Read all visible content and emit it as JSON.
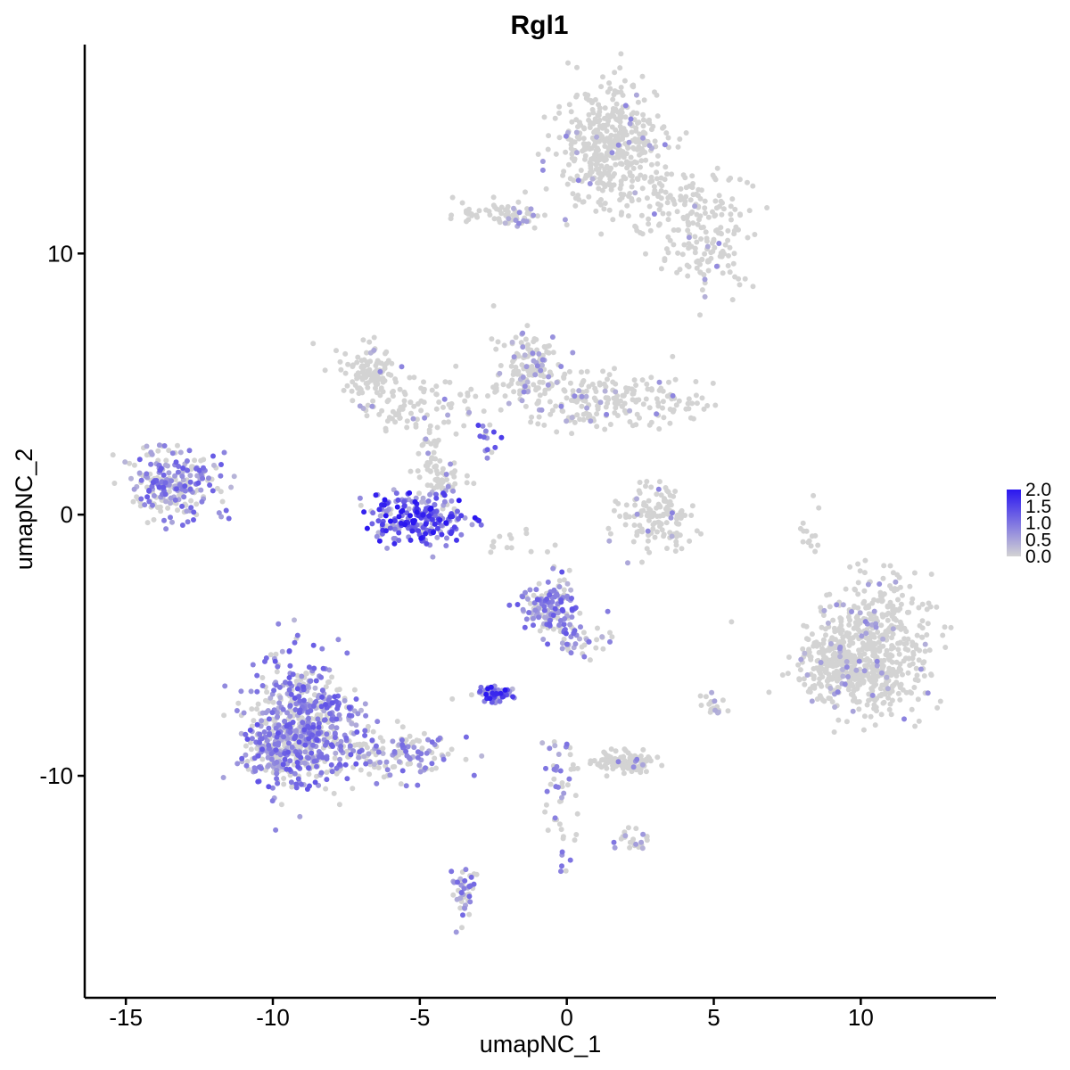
{
  "chart_data": {
    "type": "scatter",
    "title": "Rgl1",
    "xlabel": "umapNC_1",
    "ylabel": "umapNC_2",
    "xlim": [
      -16.4,
      14.6
    ],
    "ylim": [
      -18.5,
      18.0
    ],
    "x_ticks": [
      -15,
      -10,
      -5,
      0,
      5,
      10
    ],
    "x_tick_labels": [
      "-15",
      "-10",
      "-5",
      "0",
      "5",
      "10"
    ],
    "y_ticks": [
      -10,
      0,
      10
    ],
    "y_tick_labels": [
      "-10",
      "0",
      "10"
    ],
    "grid": false,
    "legend_position": "right",
    "color_scale": {
      "low": "#d3d3d3",
      "high": "#2a16f0",
      "min": 0.0,
      "max": 2.0,
      "breaks": [
        0.0,
        0.5,
        1.0,
        1.5,
        2.0
      ],
      "break_labels": [
        "0.0",
        "0.5",
        "1.0",
        "1.5",
        "2.0"
      ]
    },
    "clusters": [
      {
        "cx": 1.5,
        "cy": 14.2,
        "sx": 0.95,
        "sy": 1.1,
        "n": 420,
        "expr": 0.02
      },
      {
        "cx": 3.4,
        "cy": 12.0,
        "sx": 1.3,
        "sy": 0.6,
        "n": 120,
        "expr": 0.02
      },
      {
        "cx": 4.8,
        "cy": 10.3,
        "sx": 0.8,
        "sy": 0.8,
        "n": 110,
        "expr": 0.02
      },
      {
        "cx": -2.2,
        "cy": 11.5,
        "sx": 0.8,
        "sy": 0.3,
        "n": 70,
        "expr": 0.06
      },
      {
        "cx": -6.6,
        "cy": 5.5,
        "sx": 0.6,
        "sy": 0.5,
        "n": 110,
        "expr": 0.03
      },
      {
        "cx": -5.0,
        "cy": 4.2,
        "sx": 1.2,
        "sy": 0.5,
        "n": 90,
        "expr": 0.05
      },
      {
        "cx": -1.3,
        "cy": 5.5,
        "sx": 0.6,
        "sy": 0.7,
        "n": 150,
        "expr": 0.12
      },
      {
        "cx": 1.5,
        "cy": 4.4,
        "sx": 1.5,
        "sy": 0.5,
        "n": 200,
        "expr": 0.06
      },
      {
        "cx": -5.1,
        "cy": -0.1,
        "sx": 0.85,
        "sy": 0.5,
        "n": 230,
        "expr": 0.75
      },
      {
        "cx": -4.2,
        "cy": 1.2,
        "sx": 0.4,
        "sy": 0.5,
        "n": 55,
        "expr": 0.1
      },
      {
        "cx": -4.7,
        "cy": 2.5,
        "sx": 0.2,
        "sy": 0.8,
        "n": 30,
        "expr": 0.05
      },
      {
        "cx": -13.4,
        "cy": 1.1,
        "sx": 0.7,
        "sy": 0.6,
        "n": 260,
        "expr": 0.42
      },
      {
        "cx": 3.1,
        "cy": -0.3,
        "sx": 0.6,
        "sy": 0.6,
        "n": 120,
        "expr": 0.04
      },
      {
        "cx": 10.4,
        "cy": -5.1,
        "sx": 1.0,
        "sy": 1.3,
        "n": 520,
        "expr": 0.05
      },
      {
        "cx": 9.2,
        "cy": -5.9,
        "sx": 0.7,
        "sy": 0.6,
        "n": 200,
        "expr": 0.05
      },
      {
        "cx": -0.6,
        "cy": -3.5,
        "sx": 0.5,
        "sy": 0.55,
        "n": 160,
        "expr": 0.45
      },
      {
        "cx": 0.6,
        "cy": -4.8,
        "sx": 0.5,
        "sy": 0.4,
        "n": 40,
        "expr": 0.35
      },
      {
        "cx": -2.4,
        "cy": -6.9,
        "sx": 0.3,
        "sy": 0.18,
        "n": 55,
        "expr": 0.75
      },
      {
        "cx": -8.9,
        "cy": -8.0,
        "sx": 0.9,
        "sy": 1.2,
        "n": 560,
        "expr": 0.45
      },
      {
        "cx": -9.8,
        "cy": -9.1,
        "sx": 0.6,
        "sy": 0.5,
        "n": 150,
        "expr": 0.45
      },
      {
        "cx": -6.0,
        "cy": -9.2,
        "sx": 1.1,
        "sy": 0.5,
        "n": 140,
        "expr": 0.35
      },
      {
        "cx": 1.9,
        "cy": -9.5,
        "sx": 0.6,
        "sy": 0.2,
        "n": 110,
        "expr": 0.02
      },
      {
        "cx": 5.0,
        "cy": -7.3,
        "sx": 0.2,
        "sy": 0.3,
        "n": 18,
        "expr": 0.2
      },
      {
        "cx": -0.2,
        "cy": -10.5,
        "sx": 0.3,
        "sy": 1.3,
        "n": 50,
        "expr": 0.3
      },
      {
        "cx": 2.2,
        "cy": -12.5,
        "sx": 0.4,
        "sy": 0.2,
        "n": 25,
        "expr": 0.3
      },
      {
        "cx": -3.5,
        "cy": -14.5,
        "sx": 0.2,
        "sy": 0.6,
        "n": 45,
        "expr": 0.35
      },
      {
        "cx": 8.3,
        "cy": -0.5,
        "sx": 0.15,
        "sy": 0.5,
        "n": 14,
        "expr": 0.0
      },
      {
        "cx": -1.8,
        "cy": -1.0,
        "sx": 0.5,
        "sy": 0.3,
        "n": 14,
        "expr": 0.0
      },
      {
        "cx": 3.3,
        "cy": 0.8,
        "sx": 0.2,
        "sy": 0.4,
        "n": 14,
        "expr": 0.1
      },
      {
        "cx": -2.7,
        "cy": 2.8,
        "sx": 0.2,
        "sy": 0.4,
        "n": 14,
        "expr": 0.6
      }
    ]
  }
}
